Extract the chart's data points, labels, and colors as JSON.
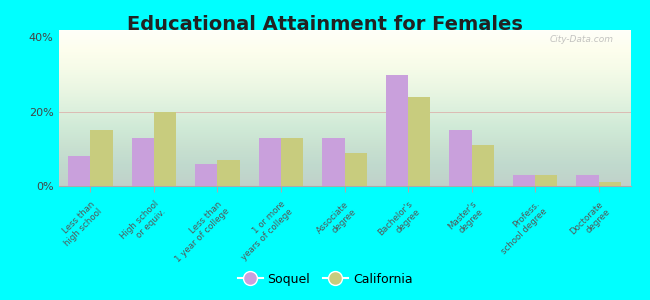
{
  "title": "Educational Attainment for Females",
  "categories": [
    "Less than\nhigh school",
    "High school\nor equiv.",
    "Less than\n1 year of college",
    "1 or more\nyears of college",
    "Associate\ndegree",
    "Bachelor's\ndegree",
    "Master's\ndegree",
    "Profess.\nschool degree",
    "Doctorate\ndegree"
  ],
  "soquel": [
    8,
    13,
    6,
    13,
    13,
    30,
    15,
    3,
    3
  ],
  "california": [
    15,
    20,
    7,
    13,
    9,
    24,
    11,
    3,
    1
  ],
  "soquel_color": "#c9a0dc",
  "california_color": "#c8cc7e",
  "bg_top_color": "#f0f8e8",
  "bg_bottom_color": "#e8f8f0",
  "outer_background": "#00ffff",
  "ylim": [
    0,
    42
  ],
  "ytick_labels": [
    "0%",
    "20%",
    "40%"
  ],
  "title_fontsize": 14,
  "legend_soquel": "Soquel",
  "legend_california": "California",
  "watermark": "City-Data.com"
}
